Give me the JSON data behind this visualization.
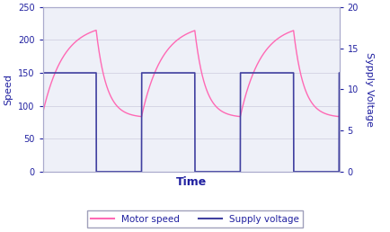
{
  "title": "",
  "xlabel": "Time",
  "ylabel_left": "Speed",
  "ylabel_right": "Sypply Voltage",
  "xlim": [
    0,
    1
  ],
  "ylim_left": [
    0,
    250
  ],
  "ylim_right": [
    0,
    20
  ],
  "yticks_left": [
    0,
    50,
    100,
    150,
    200,
    250
  ],
  "yticks_right": [
    0,
    5,
    10,
    15,
    20
  ],
  "motor_speed_color": "#FF69B4",
  "supply_voltage_color": "#4040A0",
  "background_color": "#FFFFFF",
  "plot_bg_color": "#EEF0F8",
  "legend_label_speed": "Motor speed",
  "legend_label_voltage": "Supply voltage",
  "figsize": [
    4.34,
    2.58
  ],
  "dpi": 100,
  "cycle_period": 0.333,
  "duty_cycle": 0.54,
  "sv_high": 12.0,
  "sv_low": 0.0,
  "tau_rise": 0.07,
  "tau_fall": 0.035,
  "speed_max": 225.0,
  "speed_min": 82.0,
  "speed_init": 90.0
}
